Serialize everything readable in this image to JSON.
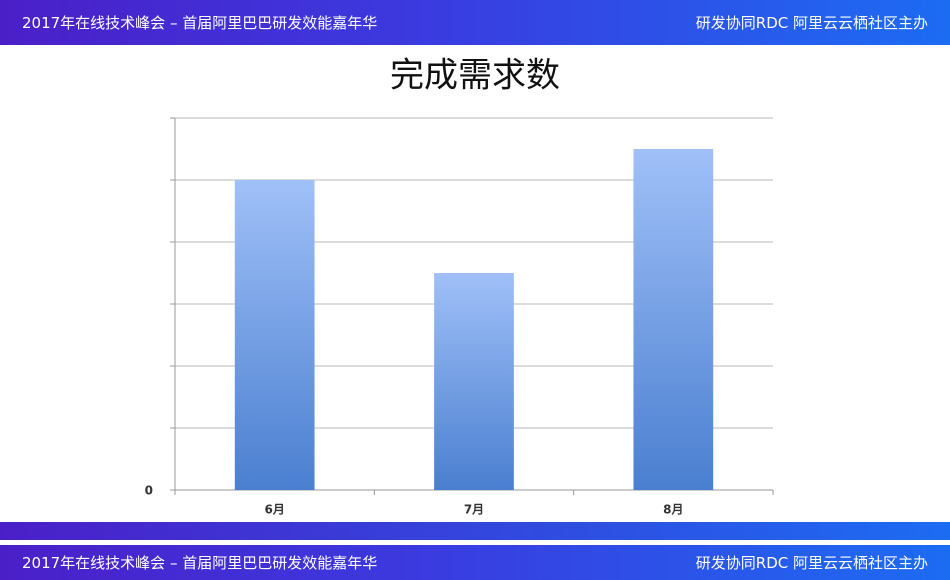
{
  "header": {
    "left": "2017年在线技术峰会 – 首届阿里巴巴研发效能嘉年华",
    "right": "研发协同RDC 阿里云云栖社区主办"
  },
  "footer": {
    "left": "2017年在线技术峰会 – 首届阿里巴巴研发效能嘉年华",
    "right": "研发协同RDC 阿里云云栖社区主办"
  },
  "chart_data": {
    "type": "bar",
    "title": "完成需求数",
    "categories": [
      "6月",
      "7月",
      "8月"
    ],
    "values": [
      5,
      3.5,
      5.5
    ],
    "color_top": "#a0c0f8",
    "color_bottom": "#4a7fd0",
    "ylim": [
      0,
      6
    ],
    "yticks": [
      0,
      1,
      2,
      3,
      4,
      5,
      6
    ],
    "ytick_labels": [
      0
    ],
    "grid": true
  }
}
